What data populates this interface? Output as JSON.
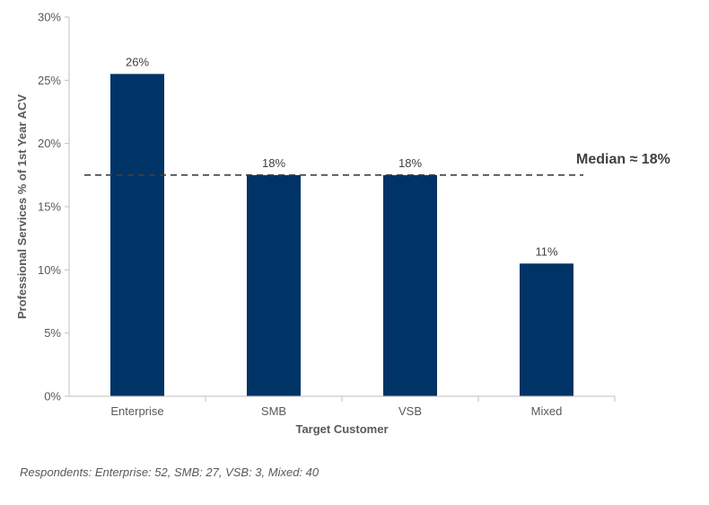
{
  "chart_data": {
    "type": "bar",
    "categories": [
      "Enterprise",
      "SMB",
      "VSB",
      "Mixed"
    ],
    "values": [
      25.5,
      17.5,
      17.5,
      10.5
    ],
    "data_labels": [
      "26%",
      "18%",
      "18%",
      "11%"
    ],
    "xlabel": "Target Customer",
    "ylabel": "Professional Services % of 1st Year ACV",
    "ylim": [
      0,
      30
    ],
    "yticks": [
      0,
      5,
      10,
      15,
      20,
      25,
      30
    ],
    "ytick_labels": [
      "0%",
      "5%",
      "10%",
      "15%",
      "20%",
      "25%",
      "30%"
    ],
    "grid": false,
    "bar_color": "#003366",
    "reference_line": {
      "value": 17.5,
      "label": "Median ≈ 18%",
      "style": "dashed",
      "color": "#404040"
    }
  },
  "footnote": "Respondents: Enterprise: 52, SMB: 27, VSB: 3, Mixed: 40"
}
